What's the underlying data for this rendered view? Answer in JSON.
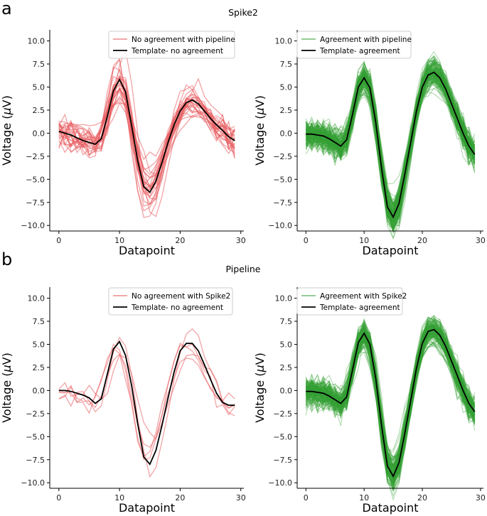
{
  "figure": {
    "panel_letters": [
      "a",
      "b"
    ],
    "row_titles": [
      "Spike2",
      "Pipeline"
    ]
  },
  "colors": {
    "red": "#e8595d",
    "green": "#35a035",
    "template": "#000000"
  },
  "chart_data": [
    {
      "type": "line",
      "row_title": "Spike2",
      "xlabel": "Datapoint",
      "ylabel": "Voltage (μV)",
      "ylabel_prefix": "Voltage (",
      "ylabel_mu": "μ",
      "ylabel_suffix": "V)",
      "xlim": [
        -1.5,
        30.5
      ],
      "ylim": [
        -10.6,
        11.2
      ],
      "xticks": [
        0,
        10,
        20,
        30
      ],
      "yticks": [
        10.0,
        7.5,
        5.0,
        2.5,
        0.0,
        -2.5,
        -5.0,
        -7.5,
        -10.0
      ],
      "ytick_labels": [
        "10.0",
        "7.5",
        "5.0",
        "2.5",
        "0.0",
        "−2.5",
        "−5.0",
        "−7.5",
        "−10.0"
      ],
      "legend": [
        "No agreement with pipeline",
        "Template- no agreement"
      ],
      "color": "red",
      "n_traces": 26,
      "template": {
        "x": [
          0,
          1,
          2,
          3,
          4,
          5,
          6,
          7,
          8,
          9,
          10,
          11,
          12,
          13,
          14,
          15,
          16,
          17,
          18,
          19,
          20,
          21,
          22,
          23,
          24,
          25,
          26,
          27,
          28,
          29
        ],
        "values": [
          0.2,
          0.0,
          -0.2,
          -0.5,
          -0.8,
          -1.0,
          -1.2,
          -0.6,
          1.8,
          4.6,
          5.8,
          4.5,
          0.8,
          -3.0,
          -5.8,
          -6.4,
          -5.2,
          -3.2,
          -1.0,
          0.9,
          2.4,
          3.3,
          3.6,
          3.2,
          2.4,
          1.6,
          0.9,
          0.3,
          -0.4,
          -0.8
        ]
      }
    },
    {
      "type": "line",
      "row_title": "Spike2",
      "xlabel": "Datapoint",
      "ylabel": "Voltage (μV)",
      "ylabel_prefix": "Voltage (",
      "ylabel_mu": "μ",
      "ylabel_suffix": "V)",
      "xlim": [
        -1.5,
        30.5
      ],
      "ylim": [
        -10.6,
        11.2
      ],
      "xticks": [
        0,
        10,
        20,
        30
      ],
      "yticks": [
        10.0,
        7.5,
        5.0,
        2.5,
        0.0,
        -2.5,
        -5.0,
        -7.5,
        -10.0
      ],
      "ytick_labels": [
        "10.0",
        "7.5",
        "5.0",
        "2.5",
        "0.0",
        "−2.5",
        "−5.0",
        "−7.5",
        "−10.0"
      ],
      "legend": [
        "Agreement with pipeline",
        "Template- agreement"
      ],
      "color": "green",
      "n_traces": 150,
      "template": {
        "x": [
          0,
          1,
          2,
          3,
          4,
          5,
          6,
          7,
          8,
          9,
          10,
          11,
          12,
          13,
          14,
          15,
          16,
          17,
          18,
          19,
          20,
          21,
          22,
          23,
          24,
          25,
          26,
          27,
          28,
          29
        ],
        "values": [
          -0.1,
          -0.1,
          -0.2,
          -0.3,
          -0.6,
          -1.0,
          -1.4,
          -0.7,
          2.0,
          5.0,
          6.0,
          4.9,
          1.2,
          -3.8,
          -8.0,
          -9.1,
          -7.6,
          -4.4,
          -1.0,
          2.4,
          5.0,
          6.3,
          6.6,
          6.0,
          4.8,
          3.2,
          1.6,
          0.0,
          -1.4,
          -2.3
        ]
      }
    },
    {
      "type": "line",
      "row_title": "Pipeline",
      "xlabel": "Datapoint",
      "ylabel": "Voltage (μV)",
      "ylabel_prefix": "Voltage (",
      "ylabel_mu": "μ",
      "ylabel_suffix": "V)",
      "xlim": [
        -1.5,
        30.5
      ],
      "ylim": [
        -10.6,
        11.2
      ],
      "xticks": [
        0,
        10,
        20,
        30
      ],
      "yticks": [
        10.0,
        7.5,
        5.0,
        2.5,
        0.0,
        -2.5,
        -5.0,
        -7.5,
        -10.0
      ],
      "ytick_labels": [
        "10.0",
        "7.5",
        "5.0",
        "2.5",
        "0.0",
        "−2.5",
        "−5.0",
        "−7.5",
        "−10.0"
      ],
      "legend": [
        "No agreement with Spike2",
        "Template- no agreement"
      ],
      "color": "red",
      "n_traces": 5,
      "template": {
        "x": [
          0,
          1,
          2,
          3,
          4,
          5,
          6,
          7,
          8,
          9,
          10,
          11,
          12,
          13,
          14,
          15,
          16,
          17,
          18,
          19,
          20,
          21,
          22,
          23,
          24,
          25,
          26,
          27,
          28,
          29
        ],
        "values": [
          0.0,
          0.0,
          -0.1,
          -0.3,
          -0.5,
          -0.8,
          -1.4,
          -0.9,
          1.8,
          4.5,
          5.3,
          3.8,
          0.5,
          -3.6,
          -7.2,
          -8.0,
          -6.5,
          -3.8,
          -0.8,
          2.0,
          4.3,
          5.1,
          5.1,
          4.3,
          2.8,
          1.2,
          -0.3,
          -1.3,
          -1.6,
          -1.6
        ]
      }
    },
    {
      "type": "line",
      "row_title": "Pipeline",
      "xlabel": "Datapoint",
      "ylabel": "Voltage (μV)",
      "ylabel_prefix": "Voltage (",
      "ylabel_mu": "μ",
      "ylabel_suffix": "V)",
      "xlim": [
        -1.5,
        30.5
      ],
      "ylim": [
        -10.6,
        11.2
      ],
      "xticks": [
        0,
        10,
        20,
        30
      ],
      "yticks": [
        10.0,
        7.5,
        5.0,
        2.5,
        0.0,
        -2.5,
        -5.0,
        -7.5,
        -10.0
      ],
      "ytick_labels": [
        "10.0",
        "7.5",
        "5.0",
        "2.5",
        "0.0",
        "−2.5",
        "−5.0",
        "−7.5",
        "−10.0"
      ],
      "legend": [
        "Agreement with Spike2",
        "Template- agreement"
      ],
      "color": "green",
      "n_traces": 150,
      "template": {
        "x": [
          0,
          1,
          2,
          3,
          4,
          5,
          6,
          7,
          8,
          9,
          10,
          11,
          12,
          13,
          14,
          15,
          16,
          17,
          18,
          19,
          20,
          21,
          22,
          23,
          24,
          25,
          26,
          27,
          28,
          29
        ],
        "values": [
          -0.1,
          -0.1,
          -0.2,
          -0.3,
          -0.6,
          -1.0,
          -1.4,
          -0.7,
          2.2,
          5.2,
          6.2,
          5.0,
          1.3,
          -3.8,
          -8.2,
          -9.3,
          -7.8,
          -4.6,
          -1.1,
          2.4,
          5.1,
          6.4,
          6.6,
          6.0,
          4.8,
          3.2,
          1.6,
          0.0,
          -1.4,
          -2.3
        ]
      }
    }
  ]
}
